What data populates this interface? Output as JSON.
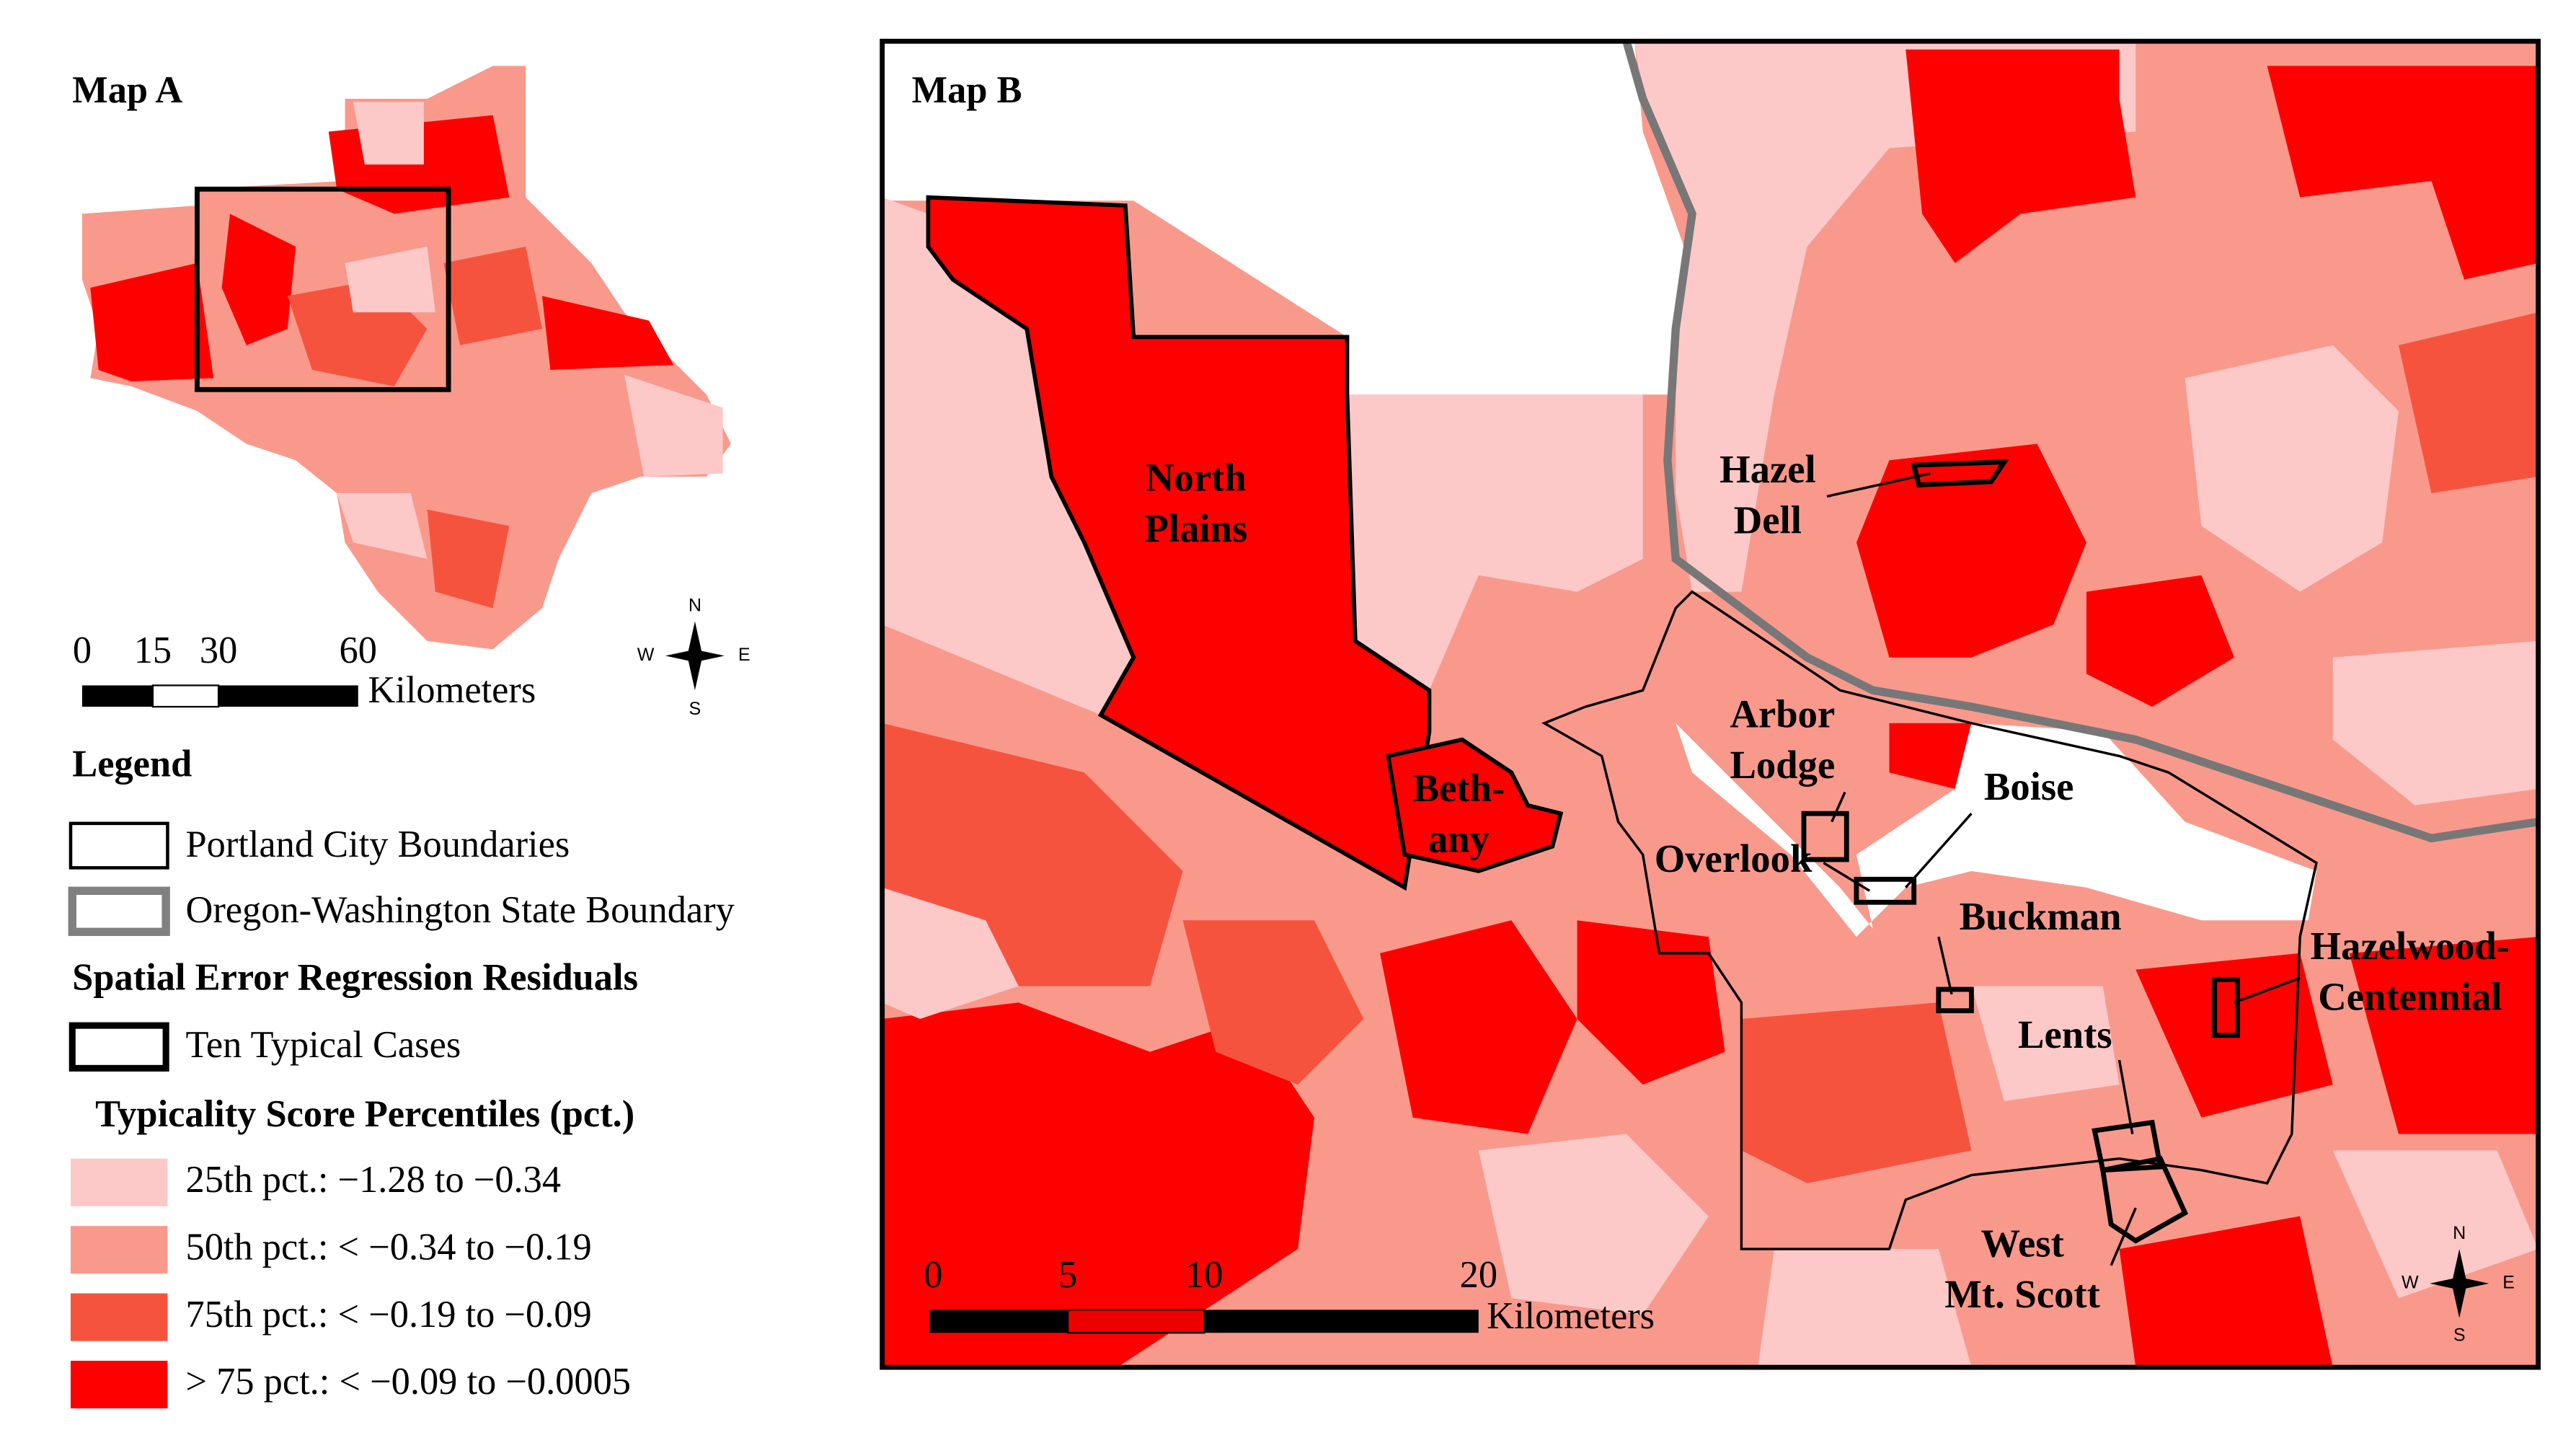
{
  "map_a": {
    "title": "Map A",
    "scale_ticks": [
      0,
      15,
      30,
      60
    ],
    "scale_unit": "Kilometers",
    "compass": {
      "n": "N",
      "s": "S",
      "w": "W",
      "e": "E"
    }
  },
  "legend": {
    "title": "Legend",
    "portland": "Portland City Boundaries",
    "state": "Oregon-Washington State Boundary",
    "residuals_title": "Spatial Error Regression Residuals",
    "cases": "Ten Typical Cases",
    "percentile_title": "Typicality Score Percentiles (pct.)",
    "classes": [
      {
        "label": "25th pct.: −1.28 to −0.34",
        "color": "#fcc9c8"
      },
      {
        "label": "50th pct.: < −0.34 to −0.19",
        "color": "#f9998c"
      },
      {
        "label": "75th pct.: < −0.19 to −0.09",
        "color": "#f6533e"
      },
      {
        "label": "> 75 pct.: < −0.09 to −0.0005",
        "color": "#ff0000"
      }
    ]
  },
  "map_b": {
    "title": "Map B",
    "scale_ticks": [
      0,
      5,
      10,
      20
    ],
    "scale_unit": "Kilometers",
    "compass": {
      "n": "N",
      "s": "S",
      "w": "W",
      "e": "E"
    },
    "places": [
      {
        "lines": [
          "North",
          "Plains"
        ]
      },
      {
        "lines": [
          "Beth-",
          "any"
        ]
      },
      {
        "lines": [
          "Hazel",
          "Dell"
        ]
      },
      {
        "lines": [
          "Arbor",
          "Lodge"
        ]
      },
      {
        "lines": [
          "Boise"
        ]
      },
      {
        "lines": [
          "Overlook"
        ]
      },
      {
        "lines": [
          "Buckman"
        ]
      },
      {
        "lines": [
          "Lents"
        ]
      },
      {
        "lines": [
          "Hazelwood-",
          "Centennial"
        ]
      },
      {
        "lines": [
          "West",
          "Mt. Scott"
        ]
      }
    ]
  }
}
